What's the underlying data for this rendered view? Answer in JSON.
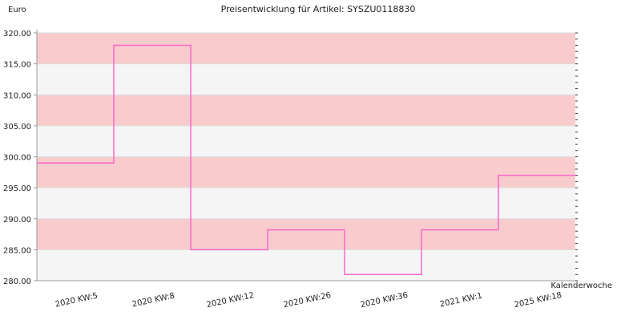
{
  "chart_data": {
    "type": "line",
    "step": true,
    "title": "Preisentwicklung für Artikel: SYSZU0118830",
    "ylabel": "Euro",
    "xlabel": "Kalenderwoche",
    "ylim": [
      280,
      320
    ],
    "ytick_step": 5,
    "y_minor_step": 1,
    "ytick_labels": [
      "280.00",
      "285.00",
      "290.00",
      "295.00",
      "300.00",
      "305.00",
      "310.00",
      "315.00",
      "320.00"
    ],
    "categories": [
      "2020 KW:5",
      "2020 KW:8",
      "2020 KW:12",
      "2020 KW:26",
      "2020 KW:36",
      "2021 KW:1",
      "2025 KW:18"
    ],
    "series": [
      {
        "values": [
          299,
          318,
          285,
          288.2,
          281,
          288.2,
          297
        ]
      }
    ],
    "grid": true,
    "colors": {
      "line": "#ff66cc",
      "band_dark": "#f8cccc",
      "band_light": "#f5f5f5",
      "axis": "#999999",
      "gridline": "#dddddd"
    }
  }
}
